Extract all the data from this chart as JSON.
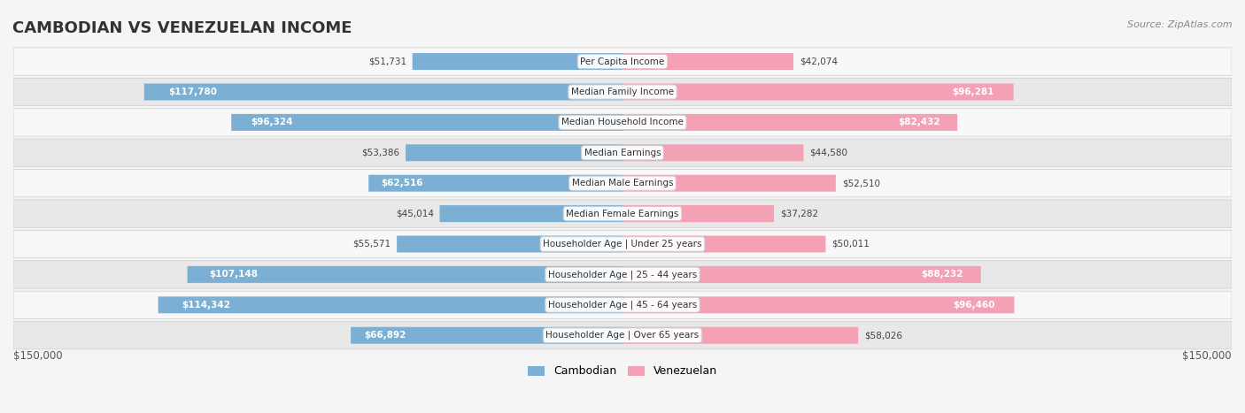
{
  "title": "CAMBODIAN VS VENEZUELAN INCOME",
  "source": "Source: ZipAtlas.com",
  "categories": [
    "Per Capita Income",
    "Median Family Income",
    "Median Household Income",
    "Median Earnings",
    "Median Male Earnings",
    "Median Female Earnings",
    "Householder Age | Under 25 years",
    "Householder Age | 25 - 44 years",
    "Householder Age | 45 - 64 years",
    "Householder Age | Over 65 years"
  ],
  "cambodian_values": [
    51731,
    117780,
    96324,
    53386,
    62516,
    45014,
    55571,
    107148,
    114342,
    66892
  ],
  "venezuelan_values": [
    42074,
    96281,
    82432,
    44580,
    52510,
    37282,
    50011,
    88232,
    96460,
    58026
  ],
  "cambodian_labels": [
    "$51,731",
    "$117,780",
    "$96,324",
    "$53,386",
    "$62,516",
    "$45,014",
    "$55,571",
    "$107,148",
    "$114,342",
    "$66,892"
  ],
  "venezuelan_labels": [
    "$42,074",
    "$96,281",
    "$82,432",
    "$44,580",
    "$52,510",
    "$37,282",
    "$50,011",
    "$88,232",
    "$96,460",
    "$58,026"
  ],
  "cambodian_color": "#7bafd4",
  "cambodian_color_dark": "#5b8db8",
  "venezuelan_color": "#f4a0b5",
  "venezuelan_color_dark": "#e06080",
  "max_value": 150000,
  "x_label_left": "$150,000",
  "x_label_right": "$150,000",
  "legend_cambodian": "Cambodian",
  "legend_venezuelan": "Venezuelan",
  "bg_color": "#f5f5f5",
  "row_bg": "#ffffff",
  "row_alt_bg": "#f0f0f0"
}
